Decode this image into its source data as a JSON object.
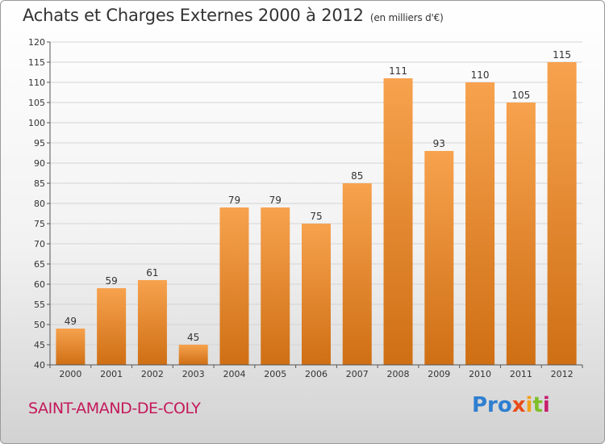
{
  "header": {
    "title": "Achats et Charges Externes 2000 à 2012",
    "unit": "(en milliers d'€)"
  },
  "footer": {
    "place": "SAINT-AMAND-DE-COLY",
    "logo": [
      "Pro",
      "x",
      "i",
      "t",
      "i"
    ]
  },
  "colors": {
    "bar_top": "#f7a24e",
    "bar_bottom": "#cf6f14",
    "place": "#c4185a"
  },
  "chart_data": {
    "type": "bar",
    "title": "Achats et Charges Externes 2000 à 2012",
    "subtitle": "(en milliers d'€)",
    "categories": [
      "2000",
      "2001",
      "2002",
      "2003",
      "2004",
      "2005",
      "2006",
      "2007",
      "2008",
      "2009",
      "2010",
      "2011",
      "2012"
    ],
    "values": [
      49,
      59,
      61,
      45,
      79,
      79,
      75,
      85,
      111,
      93,
      110,
      105,
      115
    ],
    "ylim": [
      40,
      120
    ],
    "yticks": [
      40,
      45,
      50,
      55,
      60,
      65,
      70,
      75,
      80,
      85,
      90,
      95,
      100,
      105,
      110,
      115,
      120
    ],
    "grid": true
  }
}
